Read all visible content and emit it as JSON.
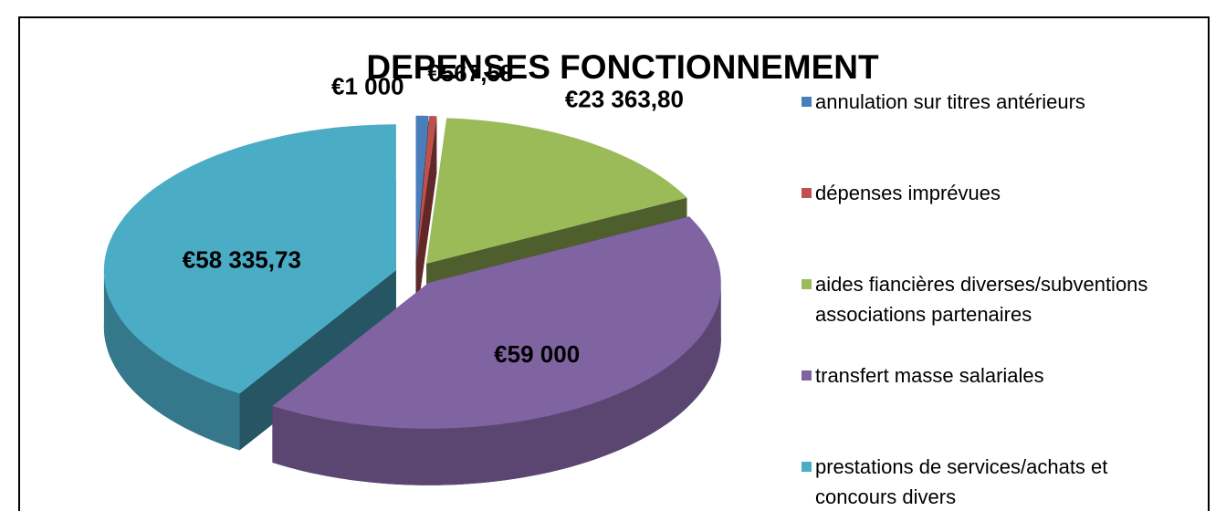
{
  "chart_data": {
    "type": "pie3d",
    "title": "DEPENSES FONCTIONNEMENT",
    "categories": [
      "annulation sur titres antérieurs",
      "dépenses imprévues",
      "aides fiancières diverses/subventions associations partenaires",
      "transfert masse salariales",
      "prestations de services/achats et concours divers"
    ],
    "values": [
      1000,
      567.58,
      23363.8,
      59000,
      58335.73
    ],
    "value_labels": [
      "€1 000",
      "€567,58",
      "€23 363,80",
      "€59 000",
      "€58 335,73"
    ],
    "colors": [
      "#4a7ebb",
      "#c0504d",
      "#9bbb59",
      "#8064a2",
      "#4bacc6"
    ],
    "legend": "right"
  }
}
